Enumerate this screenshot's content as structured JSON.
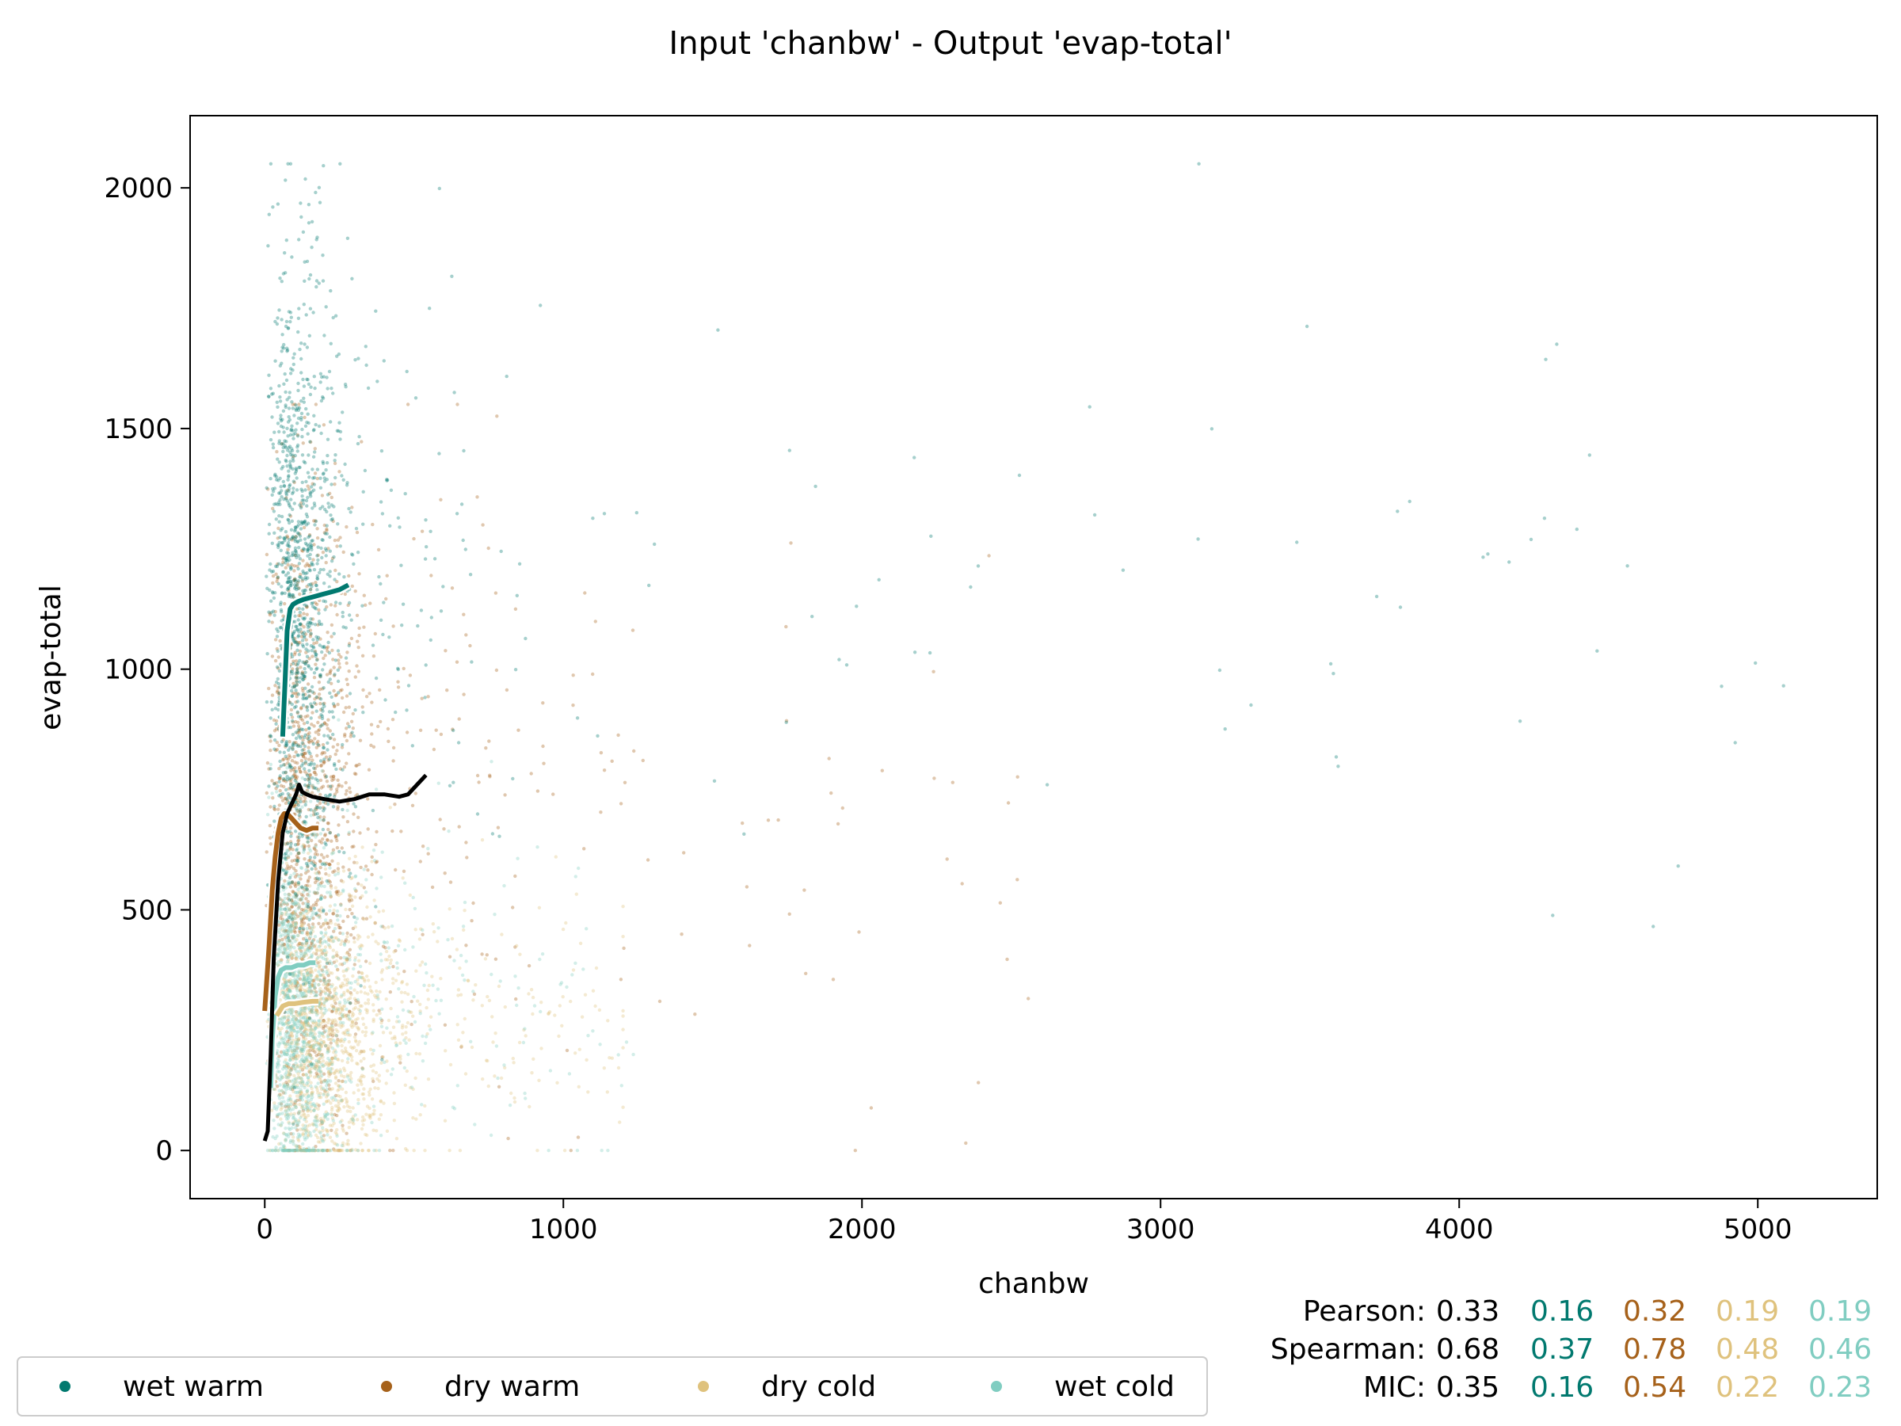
{
  "chart_data": {
    "type": "scatter",
    "title": "Input 'chanbw' - Output 'evap-total'",
    "xlabel": "chanbw",
    "ylabel": "evap-total",
    "xlim": [
      -250,
      5400
    ],
    "ylim": [
      -100,
      2150
    ],
    "xticks": [
      0,
      1000,
      2000,
      3000,
      4000,
      5000
    ],
    "yticks": [
      0,
      500,
      1000,
      1500,
      2000
    ],
    "grid": false,
    "legend_position": "bottom-left",
    "series": [
      {
        "name": "wet warm",
        "color": "#01796f",
        "cloud": {
          "x_center": 90,
          "x_spread": 150,
          "x_max": 5150,
          "y_center": 1150,
          "y_spread": 330,
          "y_min": 0,
          "y_max": 2050
        },
        "trend_x": [
          60,
          68,
          75,
          85,
          95,
          110,
          130,
          160,
          190,
          220,
          250,
          280
        ],
        "trend_y": [
          860,
          975,
          1080,
          1125,
          1135,
          1140,
          1145,
          1150,
          1155,
          1160,
          1165,
          1175
        ]
      },
      {
        "name": "dry warm",
        "color": "#a6611a",
        "cloud": {
          "x_center": 110,
          "x_spread": 200,
          "x_max": 2600,
          "y_center": 700,
          "y_spread": 330,
          "y_min": 0,
          "y_max": 1550
        },
        "trend_x": [
          0,
          15,
          25,
          35,
          45,
          55,
          65,
          75,
          90,
          105,
          120,
          140,
          160,
          180
        ],
        "trend_y": [
          290,
          430,
          540,
          610,
          660,
          690,
          700,
          700,
          690,
          680,
          670,
          665,
          670,
          670
        ]
      },
      {
        "name": "dry cold",
        "color": "#dfc27d",
        "cloud": {
          "x_center": 150,
          "x_spread": 250,
          "x_max": 1200,
          "y_center": 250,
          "y_spread": 140,
          "y_min": 0,
          "y_max": 800
        },
        "trend_x": [
          40,
          50,
          60,
          80,
          100,
          130,
          160,
          180
        ],
        "trend_y": [
          280,
          290,
          300,
          305,
          305,
          308,
          310,
          310
        ]
      },
      {
        "name": "wet cold",
        "color": "#80cdc1",
        "cloud": {
          "x_center": 80,
          "x_spread": 150,
          "x_max": 1250,
          "y_center": 300,
          "y_spread": 180,
          "y_min": 0,
          "y_max": 1000
        },
        "trend_x": [
          20,
          25,
          35,
          45,
          55,
          70,
          90,
          110,
          130,
          150,
          170
        ],
        "trend_y": [
          130,
          230,
          320,
          360,
          375,
          380,
          380,
          385,
          385,
          390,
          390
        ]
      }
    ],
    "overall_trend": {
      "color": "#000000",
      "x": [
        0,
        10,
        20,
        30,
        45,
        60,
        75,
        90,
        105,
        115,
        125,
        140,
        160,
        200,
        250,
        300,
        350,
        400,
        450,
        480,
        510,
        540
      ],
      "y": [
        20,
        40,
        200,
        400,
        560,
        660,
        700,
        720,
        740,
        760,
        745,
        740,
        735,
        730,
        725,
        730,
        740,
        740,
        735,
        740,
        760,
        780
      ]
    },
    "stats": {
      "labels": [
        "Pearson:",
        "Spearman:",
        "MIC:"
      ],
      "overall": [
        "0.33",
        "0.68",
        "0.35"
      ],
      "wet_warm": [
        "0.16",
        "0.37",
        "0.16"
      ],
      "dry_warm": [
        "0.32",
        "0.78",
        "0.54"
      ],
      "dry_cold": [
        "0.19",
        "0.48",
        "0.22"
      ],
      "wet_cold": [
        "0.19",
        "0.46",
        "0.23"
      ]
    }
  }
}
